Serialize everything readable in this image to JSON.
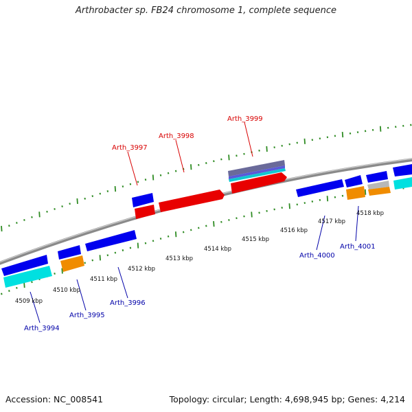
{
  "title": "Arthrobacter sp. FB24 chromosome 1, complete sequence",
  "footer": {
    "accession": "Accession: NC_008541",
    "summary": "Topology: circular; Length: 4,698,945 bp; Genes: 4,214"
  },
  "scale_labels": [
    "4509 kbp",
    "4510 kbp",
    "4511 kbp",
    "4512 kbp",
    "4513 kbp",
    "4514 kbp",
    "4515 kbp",
    "4516 kbp",
    "4517 kbp",
    "4518 kbp"
  ],
  "gene_labels": {
    "top": [
      "Arth_3997",
      "Arth_3998",
      "Arth_3999"
    ],
    "bottom": [
      "Arth_3994",
      "Arth_3995",
      "Arth_3996",
      "Arth_4000",
      "Arth_4001"
    ]
  },
  "colors": {
    "forward_label": "#d80000",
    "reverse_label": "#0000a8",
    "backbone": "#8a8a8a",
    "tick": "#2e8b22",
    "red_gene": "#e80000",
    "blue_gene": "#0000ee",
    "cyan_gene": "#00e0e0",
    "orange_gene": "#f08c00",
    "gray_gene": "#b8b8b8",
    "purple_gene": "#6a6a9a"
  }
}
